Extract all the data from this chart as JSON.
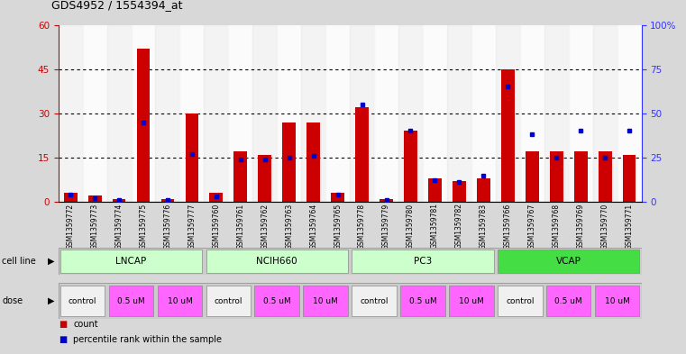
{
  "title": "GDS4952 / 1554394_at",
  "samples": [
    "GSM1359772",
    "GSM1359773",
    "GSM1359774",
    "GSM1359775",
    "GSM1359776",
    "GSM1359777",
    "GSM1359760",
    "GSM1359761",
    "GSM1359762",
    "GSM1359763",
    "GSM1359764",
    "GSM1359765",
    "GSM1359778",
    "GSM1359779",
    "GSM1359780",
    "GSM1359781",
    "GSM1359782",
    "GSM1359783",
    "GSM1359766",
    "GSM1359767",
    "GSM1359768",
    "GSM1359769",
    "GSM1359770",
    "GSM1359771"
  ],
  "red_values": [
    3,
    2,
    1,
    52,
    1,
    30,
    3,
    17,
    16,
    27,
    27,
    3,
    32,
    1,
    24,
    8,
    7,
    8,
    45,
    17,
    17,
    17,
    17,
    16
  ],
  "blue_pct": [
    4,
    2,
    1,
    45,
    1,
    27,
    3,
    24,
    24,
    25,
    26,
    4,
    55,
    1,
    40,
    12,
    11,
    15,
    65,
    38,
    25,
    40,
    25,
    40
  ],
  "cell_lines": [
    {
      "label": "LNCAP",
      "start": 0,
      "end": 6,
      "color": "#ccffcc"
    },
    {
      "label": "NCIH660",
      "start": 6,
      "end": 12,
      "color": "#ccffcc"
    },
    {
      "label": "PC3",
      "start": 12,
      "end": 18,
      "color": "#ccffcc"
    },
    {
      "label": "VCAP",
      "start": 18,
      "end": 24,
      "color": "#44dd44"
    }
  ],
  "doses": [
    {
      "label": "control",
      "start": 0,
      "end": 2,
      "color": "#f0f0f0"
    },
    {
      "label": "0.5 uM",
      "start": 2,
      "end": 4,
      "color": "#ff66ff"
    },
    {
      "label": "10 uM",
      "start": 4,
      "end": 6,
      "color": "#ff66ff"
    },
    {
      "label": "control",
      "start": 6,
      "end": 8,
      "color": "#f0f0f0"
    },
    {
      "label": "0.5 uM",
      "start": 8,
      "end": 10,
      "color": "#ff66ff"
    },
    {
      "label": "10 uM",
      "start": 10,
      "end": 12,
      "color": "#ff66ff"
    },
    {
      "label": "control",
      "start": 12,
      "end": 14,
      "color": "#f0f0f0"
    },
    {
      "label": "0.5 uM",
      "start": 14,
      "end": 16,
      "color": "#ff66ff"
    },
    {
      "label": "10 uM",
      "start": 16,
      "end": 18,
      "color": "#ff66ff"
    },
    {
      "label": "control",
      "start": 18,
      "end": 20,
      "color": "#f0f0f0"
    },
    {
      "label": "0.5 uM",
      "start": 20,
      "end": 22,
      "color": "#ff66ff"
    },
    {
      "label": "10 uM",
      "start": 22,
      "end": 24,
      "color": "#ff66ff"
    }
  ],
  "ylim_left": [
    0,
    60
  ],
  "ylim_right": [
    0,
    100
  ],
  "yticks_left": [
    0,
    15,
    30,
    45,
    60
  ],
  "yticks_right": [
    0,
    25,
    50,
    75,
    100
  ],
  "ytick_labels_right": [
    "0",
    "25",
    "50",
    "75",
    "100%"
  ],
  "bar_color": "#cc0000",
  "dot_color": "#0000cc",
  "bg_color": "#d8d8d8",
  "plot_bg": "#ffffff",
  "left_axis_color": "#cc0000",
  "right_axis_color": "#3333ff"
}
